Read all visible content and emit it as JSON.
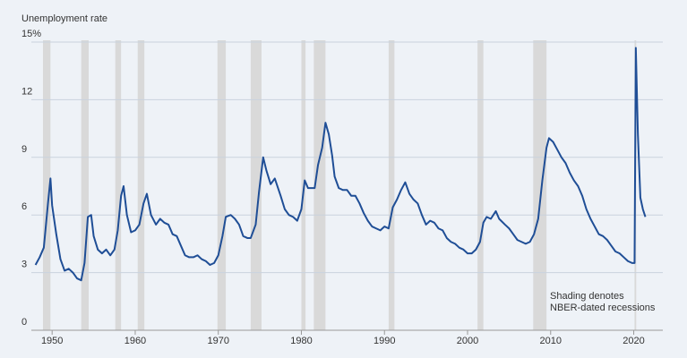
{
  "chart_data": {
    "type": "line",
    "y_label": "Unemployment rate",
    "annotation": [
      "Shading denotes",
      "NBER-dated recessions"
    ],
    "color": "#1f4e96",
    "recession_color": "#d9d9d9",
    "grid": true,
    "xlim": [
      1947.5,
      2023.5
    ],
    "xticks": [
      1950,
      1960,
      1970,
      1980,
      1990,
      2000,
      2010,
      2020
    ],
    "ylim": [
      0,
      15
    ],
    "yticks": [
      0,
      3,
      6,
      9,
      12,
      {
        "value": 15,
        "label": "15%"
      }
    ],
    "recessions": [
      [
        1948.9,
        1949.8
      ],
      [
        1953.5,
        1954.4
      ],
      [
        1957.6,
        1958.3
      ],
      [
        1960.3,
        1961.1
      ],
      [
        1969.9,
        1970.9
      ],
      [
        1973.9,
        1975.2
      ],
      [
        1980.0,
        1980.5
      ],
      [
        1981.5,
        1982.9
      ],
      [
        1990.5,
        1991.2
      ],
      [
        2001.2,
        2001.9
      ],
      [
        2007.9,
        2009.5
      ],
      [
        2020.1,
        2020.3
      ]
    ],
    "x": [
      1948.0,
      1948.5,
      1949.0,
      1949.5,
      1949.8,
      1950.0,
      1950.5,
      1951.0,
      1951.5,
      1952.0,
      1952.5,
      1953.0,
      1953.5,
      1953.9,
      1954.3,
      1954.7,
      1955.0,
      1955.5,
      1956.0,
      1956.5,
      1957.0,
      1957.5,
      1957.9,
      1958.3,
      1958.6,
      1959.0,
      1959.5,
      1960.0,
      1960.5,
      1961.0,
      1961.4,
      1961.9,
      1962.5,
      1963.0,
      1963.5,
      1964.0,
      1964.5,
      1965.0,
      1965.5,
      1966.0,
      1966.5,
      1967.0,
      1967.5,
      1968.0,
      1968.5,
      1969.0,
      1969.5,
      1970.0,
      1970.5,
      1970.9,
      1971.5,
      1972.0,
      1972.5,
      1973.0,
      1973.5,
      1973.9,
      1974.5,
      1974.9,
      1975.4,
      1975.8,
      1976.3,
      1976.8,
      1977.5,
      1978.0,
      1978.5,
      1979.0,
      1979.5,
      1980.0,
      1980.4,
      1980.8,
      1981.3,
      1981.6,
      1982.0,
      1982.5,
      1982.9,
      1983.3,
      1983.7,
      1984.0,
      1984.5,
      1985.0,
      1985.5,
      1986.0,
      1986.5,
      1987.0,
      1987.5,
      1988.0,
      1988.5,
      1989.0,
      1989.5,
      1990.0,
      1990.5,
      1991.0,
      1991.5,
      1992.0,
      1992.5,
      1993.0,
      1993.5,
      1994.0,
      1994.5,
      1995.0,
      1995.5,
      1996.0,
      1996.5,
      1997.0,
      1997.5,
      1998.0,
      1998.5,
      1999.0,
      1999.5,
      2000.0,
      2000.5,
      2001.0,
      2001.5,
      2001.9,
      2002.3,
      2002.8,
      2003.4,
      2003.8,
      2004.5,
      2005.0,
      2005.5,
      2006.0,
      2006.5,
      2007.0,
      2007.5,
      2008.0,
      2008.5,
      2009.0,
      2009.5,
      2009.8,
      2010.3,
      2010.8,
      2011.3,
      2011.8,
      2012.3,
      2012.8,
      2013.3,
      2013.8,
      2014.3,
      2014.8,
      2015.3,
      2015.8,
      2016.3,
      2016.8,
      2017.3,
      2017.8,
      2018.3,
      2018.8,
      2019.3,
      2019.8,
      2020.1,
      2020.25,
      2020.5,
      2020.8,
      2021.1,
      2021.4
    ],
    "values": [
      3.4,
      3.8,
      4.3,
      6.6,
      7.9,
      6.5,
      5.0,
      3.7,
      3.1,
      3.2,
      3.0,
      2.7,
      2.6,
      3.5,
      5.9,
      6.0,
      4.9,
      4.2,
      4.0,
      4.2,
      3.9,
      4.2,
      5.2,
      7.0,
      7.5,
      6.0,
      5.1,
      5.2,
      5.5,
      6.6,
      7.1,
      6.0,
      5.5,
      5.8,
      5.6,
      5.5,
      5.0,
      4.9,
      4.4,
      3.9,
      3.8,
      3.8,
      3.9,
      3.7,
      3.6,
      3.4,
      3.5,
      3.9,
      4.9,
      5.9,
      6.0,
      5.8,
      5.5,
      4.9,
      4.8,
      4.8,
      5.5,
      7.2,
      9.0,
      8.3,
      7.6,
      7.9,
      7.0,
      6.3,
      6.0,
      5.9,
      5.7,
      6.3,
      7.8,
      7.4,
      7.4,
      7.4,
      8.6,
      9.5,
      10.8,
      10.2,
      9.1,
      8.0,
      7.4,
      7.3,
      7.3,
      7.0,
      7.0,
      6.6,
      6.1,
      5.7,
      5.4,
      5.3,
      5.2,
      5.4,
      5.3,
      6.4,
      6.8,
      7.3,
      7.7,
      7.1,
      6.8,
      6.6,
      6.0,
      5.5,
      5.7,
      5.6,
      5.3,
      5.2,
      4.8,
      4.6,
      4.5,
      4.3,
      4.2,
      4.0,
      4.0,
      4.2,
      4.6,
      5.6,
      5.9,
      5.8,
      6.2,
      5.8,
      5.5,
      5.3,
      5.0,
      4.7,
      4.6,
      4.5,
      4.6,
      5.0,
      5.8,
      7.8,
      9.5,
      10.0,
      9.8,
      9.4,
      9.0,
      8.7,
      8.2,
      7.8,
      7.5,
      7.0,
      6.3,
      5.8,
      5.4,
      5.0,
      4.9,
      4.7,
      4.4,
      4.1,
      4.0,
      3.8,
      3.6,
      3.5,
      3.5,
      14.7,
      10.2,
      6.9,
      6.3,
      5.9
    ]
  }
}
